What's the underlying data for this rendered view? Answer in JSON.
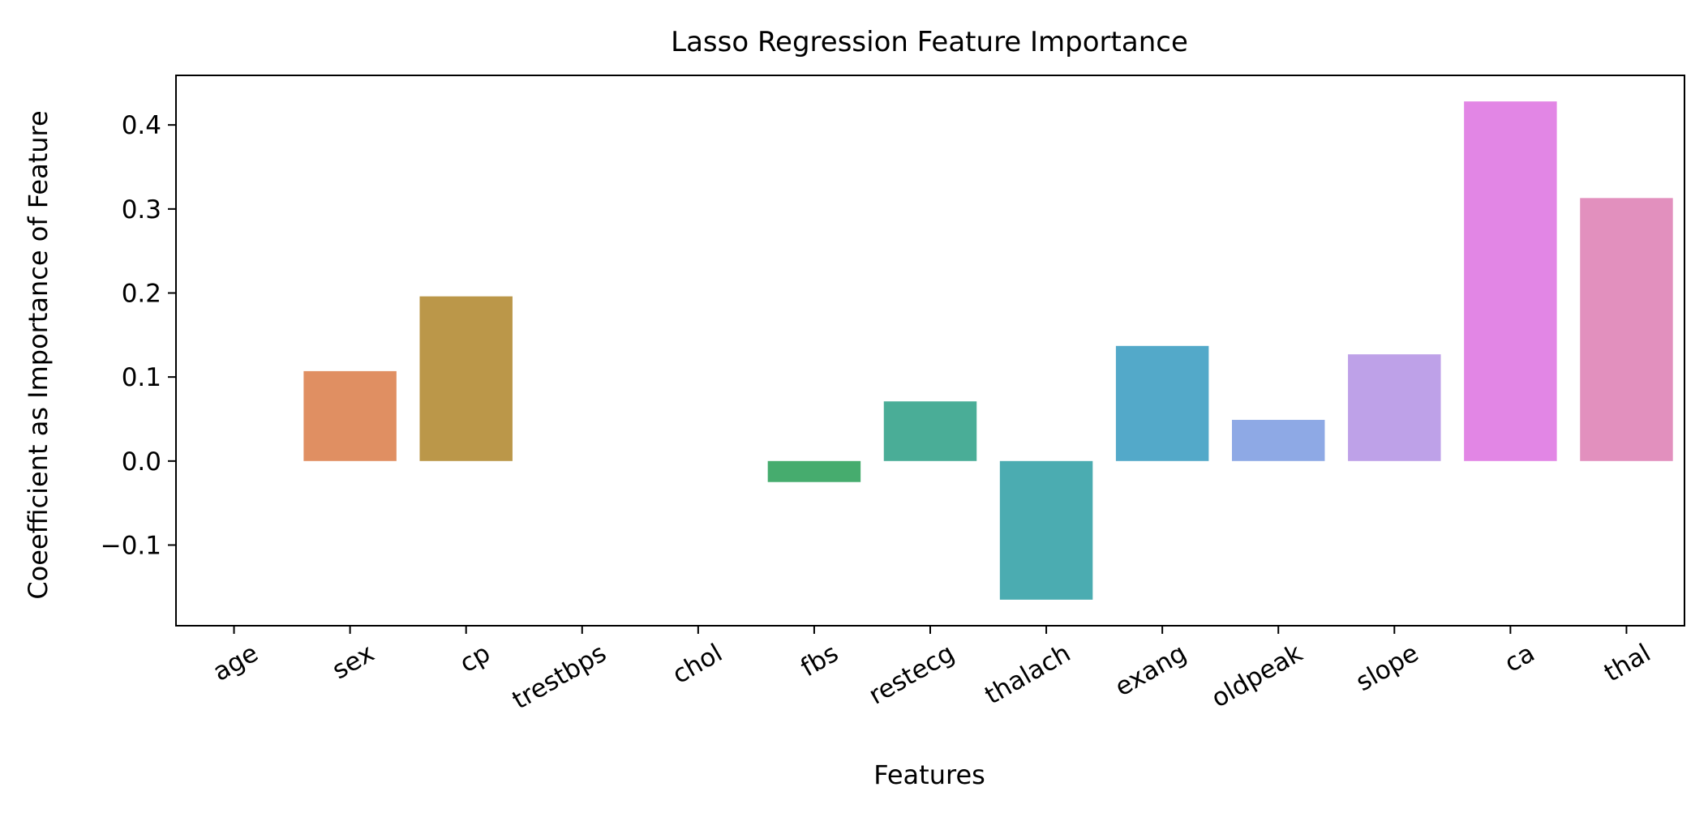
{
  "chart_data": {
    "type": "bar",
    "title": "Lasso Regression Feature Importance",
    "xlabel": "Features",
    "ylabel": "Coeefficient as Importance of Feature",
    "categories": [
      "age",
      "sex",
      "cp",
      "trestbps",
      "chol",
      "fbs",
      "restecg",
      "thalach",
      "exang",
      "oldpeak",
      "slope",
      "ca",
      "thal"
    ],
    "values": [
      0.0,
      0.107,
      0.196,
      0.0,
      0.0,
      -0.025,
      0.071,
      -0.165,
      0.137,
      0.049,
      0.127,
      0.428,
      0.313
    ],
    "colors": [
      "#e1867c",
      "#e08f62",
      "#bb9749",
      "#9a9f48",
      "#73a645",
      "#46ac6e",
      "#4aad97",
      "#4bacb1",
      "#53a9c9",
      "#8ea9e5",
      "#bea1e8",
      "#e286e5",
      "#e290be"
    ],
    "yticks": [
      -0.1,
      0.0,
      0.1,
      0.2,
      0.3,
      0.4
    ],
    "ytick_labels": [
      "−0.1",
      "0.0",
      "0.1",
      "0.2",
      "0.3",
      "0.4"
    ],
    "ylim": [
      -0.196,
      0.459
    ],
    "grid": false,
    "legend": "none"
  }
}
